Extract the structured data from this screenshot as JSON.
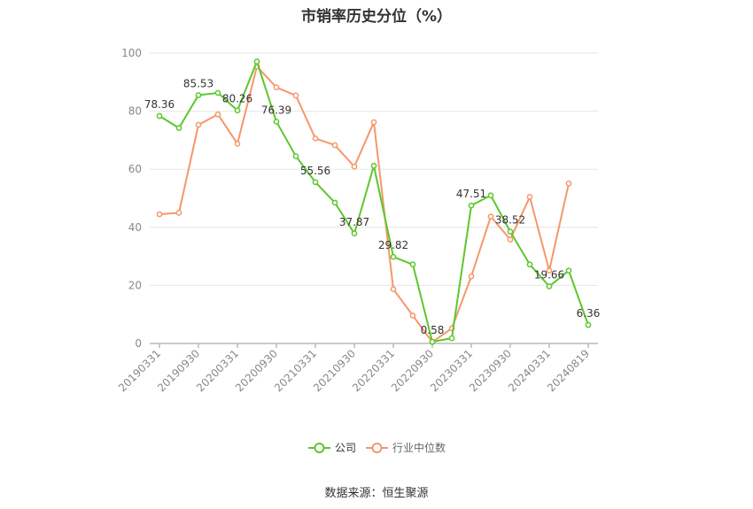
{
  "chart_data": {
    "type": "line",
    "title": "市销率历史分位（%）",
    "source": "数据来源：恒生聚源",
    "ylim": [
      0,
      100
    ],
    "yticks": [
      0,
      20,
      40,
      60,
      80,
      100
    ],
    "grid": true,
    "legend_position": "bottom",
    "x": [
      "20190331",
      "20190630",
      "20190930",
      "20191231",
      "20200331",
      "20200630",
      "20200930",
      "20201231",
      "20210331",
      "20210630",
      "20210930",
      "20211231",
      "20220331",
      "20220630",
      "20220930",
      "20221231",
      "20230331",
      "20230630",
      "20230930",
      "20231231",
      "20240331",
      "20240630",
      "20240819"
    ],
    "x_tick_labels": [
      "20190331",
      "20190930",
      "20200331",
      "20200930",
      "20210331",
      "20210930",
      "20220331",
      "20220930",
      "20230331",
      "20230930",
      "20240331",
      "20240819"
    ],
    "series": [
      {
        "name": "公司",
        "color": "#5cc72c",
        "values": [
          78.36,
          74.2,
          85.53,
          86.3,
          80.26,
          97.1,
          76.39,
          64.5,
          55.56,
          48.5,
          37.87,
          61.2,
          29.82,
          27.2,
          0.58,
          1.8,
          47.51,
          51.0,
          38.52,
          27.2,
          19.66,
          25.1,
          6.36
        ]
      },
      {
        "name": "行业中位数",
        "color": "#f5976a",
        "values": [
          44.5,
          45.0,
          75.3,
          78.9,
          68.8,
          95.4,
          88.2,
          85.4,
          70.6,
          68.3,
          60.9,
          76.2,
          18.7,
          9.6,
          0.5,
          5.2,
          23.1,
          43.7,
          35.8,
          50.5,
          25.1,
          55.1,
          null
        ]
      }
    ],
    "data_labels": [
      {
        "index": 0,
        "text": "78.36"
      },
      {
        "index": 2,
        "text": "85.53"
      },
      {
        "index": 4,
        "text": "80.26"
      },
      {
        "index": 6,
        "text": "76.39"
      },
      {
        "index": 8,
        "text": "55.56"
      },
      {
        "index": 10,
        "text": "37.87"
      },
      {
        "index": 12,
        "text": "29.82"
      },
      {
        "index": 14,
        "text": "0.58"
      },
      {
        "index": 16,
        "text": "47.51"
      },
      {
        "index": 18,
        "text": "38.52"
      },
      {
        "index": 20,
        "text": "19.66"
      },
      {
        "index": 22,
        "text": "6.36"
      }
    ]
  }
}
